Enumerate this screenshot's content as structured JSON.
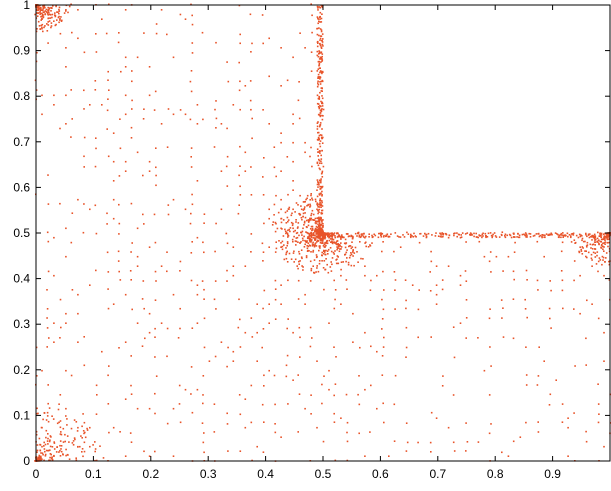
{
  "chart_data": {
    "type": "scatter",
    "title": "",
    "xlabel": "",
    "ylabel": "",
    "xlim": [
      0,
      1
    ],
    "ylim": [
      0,
      1
    ],
    "grid": false,
    "legend": "none",
    "marker_color": "#e8542a",
    "x_ticks": [
      "0",
      "0.1",
      "0.2",
      "0.3",
      "0.4",
      "0.5",
      "0.6",
      "0.7",
      "0.8",
      "0.9"
    ],
    "y_ticks": [
      "0",
      "0.1",
      "0.2",
      "0.3",
      "0.4",
      "0.5",
      "0.6",
      "0.7",
      "0.8",
      "0.9",
      "1"
    ],
    "domain_shape": "L-shaped region: unit square with the upper-right quadrant (x > 0.5, y > 0.5) empty",
    "refinement_point": [
      0.5,
      0.5
    ],
    "series": [
      {
        "points_description": "adaptive mesh nodes, densest near (0.5, 0.5) and along the domain corners and edges",
        "approx_point_count": 3000
      }
    ]
  }
}
